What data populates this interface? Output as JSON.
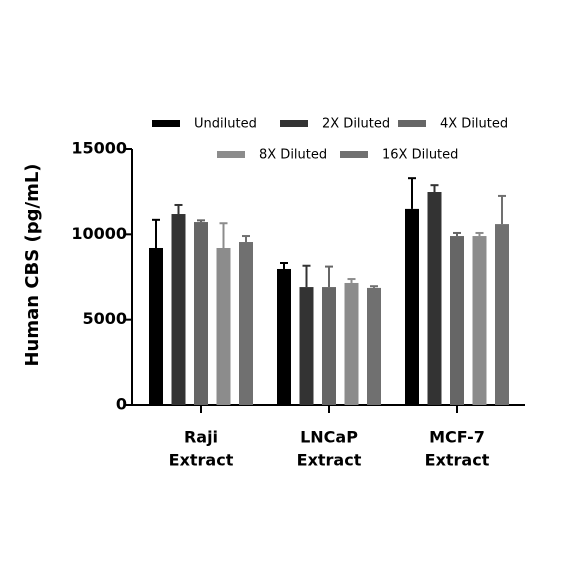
{
  "chart_data": {
    "type": "bar",
    "y_label": "Human CBS (pg/mL)",
    "categories": [
      [
        "Raji",
        "Extract"
      ],
      [
        "LNCaP",
        "Extract"
      ],
      [
        "MCF-7",
        "Extract"
      ]
    ],
    "series": [
      {
        "name": "Undiluted",
        "color": "#000000",
        "values": [
          9200,
          7970,
          11490
        ],
        "errors": [
          1650,
          350,
          1800
        ]
      },
      {
        "name": "2X Diluted",
        "color": "#333333",
        "values": [
          11190,
          6910,
          12480
        ],
        "errors": [
          530,
          1250,
          400
        ]
      },
      {
        "name": "4X Diluted",
        "color": "#666666",
        "values": [
          10720,
          6910,
          9900
        ],
        "errors": [
          100,
          1200,
          180
        ]
      },
      {
        "name": "8X Diluted",
        "color": "#8c8c8c",
        "values": [
          9200,
          7150,
          9900
        ],
        "errors": [
          1450,
          230,
          180
        ]
      },
      {
        "name": "16X Diluted",
        "color": "#707070",
        "values": [
          9550,
          6860,
          10600
        ],
        "errors": [
          350,
          100,
          1650
        ]
      }
    ],
    "ylim": [
      0,
      15000
    ],
    "yticks": [
      0,
      5000,
      10000,
      15000
    ]
  }
}
